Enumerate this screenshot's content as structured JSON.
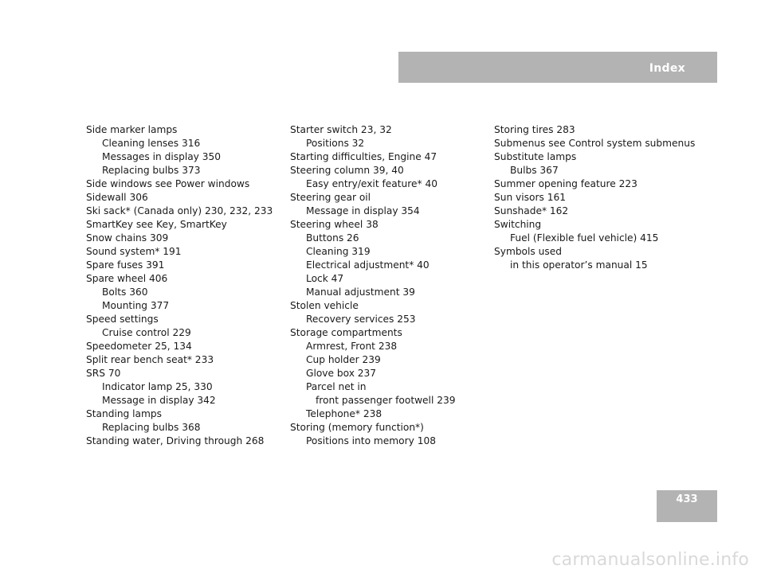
{
  "header": {
    "title": "Index"
  },
  "page_number": "433",
  "watermark": "carmanualsonline.info",
  "columns": [
    {
      "entries": [
        {
          "text": "Side marker lamps",
          "level": 0
        },
        {
          "text": "Cleaning lenses    316",
          "level": 1
        },
        {
          "text": "Messages in display    350",
          "level": 1
        },
        {
          "text": "Replacing bulbs    373",
          "level": 1
        },
        {
          "text": "Side windows see Power windows",
          "level": 0
        },
        {
          "text": "Sidewall    306",
          "level": 0
        },
        {
          "text": "Ski sack* (Canada only)    230, 232, 233",
          "level": 0
        },
        {
          "text": "SmartKey see Key, SmartKey",
          "level": 0
        },
        {
          "text": "Snow chains    309",
          "level": 0
        },
        {
          "text": "Sound system*    191",
          "level": 0
        },
        {
          "text": "Spare fuses    391",
          "level": 0
        },
        {
          "text": "Spare wheel    406",
          "level": 0
        },
        {
          "text": "Bolts    360",
          "level": 1
        },
        {
          "text": "Mounting    377",
          "level": 1
        },
        {
          "text": "Speed settings",
          "level": 0
        },
        {
          "text": "Cruise control    229",
          "level": 1
        },
        {
          "text": "Speedometer    25, 134",
          "level": 0
        },
        {
          "text": "Split rear bench seat*    233",
          "level": 0
        },
        {
          "text": "SRS    70",
          "level": 0
        },
        {
          "text": "Indicator lamp    25, 330",
          "level": 1
        },
        {
          "text": "Message in display    342",
          "level": 1
        },
        {
          "text": "Standing lamps",
          "level": 0
        },
        {
          "text": "Replacing bulbs    368",
          "level": 1
        },
        {
          "text": "Standing water, Driving through    268",
          "level": 0
        }
      ]
    },
    {
      "entries": [
        {
          "text": "Starter switch    23, 32",
          "level": 0
        },
        {
          "text": "Positions    32",
          "level": 1
        },
        {
          "text": "Starting difficulties, Engine    47",
          "level": 0
        },
        {
          "text": "Steering column    39, 40",
          "level": 0
        },
        {
          "text": "Easy entry/exit feature*    40",
          "level": 1
        },
        {
          "text": "Steering gear oil",
          "level": 0
        },
        {
          "text": "Message in display    354",
          "level": 1
        },
        {
          "text": "Steering wheel    38",
          "level": 0
        },
        {
          "text": "Buttons    26",
          "level": 1
        },
        {
          "text": "Cleaning    319",
          "level": 1
        },
        {
          "text": "Electrical adjustment*    40",
          "level": 1
        },
        {
          "text": "Lock    47",
          "level": 1
        },
        {
          "text": "Manual adjustment    39",
          "level": 1
        },
        {
          "text": "Stolen vehicle",
          "level": 0
        },
        {
          "text": "Recovery services    253",
          "level": 1
        },
        {
          "text": "Storage compartments",
          "level": 0
        },
        {
          "text": "Armrest, Front    238",
          "level": 1
        },
        {
          "text": "Cup holder    239",
          "level": 1
        },
        {
          "text": "Glove box    237",
          "level": 1
        },
        {
          "text": "Parcel net in",
          "level": 1
        },
        {
          "text": "front passenger footwell    239",
          "level": 2
        },
        {
          "text": "Telephone*    238",
          "level": 1
        },
        {
          "text": "Storing (memory function*)",
          "level": 0
        },
        {
          "text": "Positions into memory    108",
          "level": 1
        }
      ]
    },
    {
      "entries": [
        {
          "text": "Storing tires    283",
          "level": 0
        },
        {
          "text": "Submenus see Control system submenus",
          "level": 0
        },
        {
          "text": "Substitute lamps",
          "level": 0
        },
        {
          "text": "Bulbs    367",
          "level": 1
        },
        {
          "text": "Summer opening feature    223",
          "level": 0
        },
        {
          "text": "Sun visors    161",
          "level": 0
        },
        {
          "text": "Sunshade*    162",
          "level": 0
        },
        {
          "text": "Switching",
          "level": 0
        },
        {
          "text": "Fuel (Flexible fuel vehicle)    415",
          "level": 1
        },
        {
          "text": "Symbols used",
          "level": 0
        },
        {
          "text": "in this operator’s manual    15",
          "level": 1
        }
      ]
    }
  ]
}
